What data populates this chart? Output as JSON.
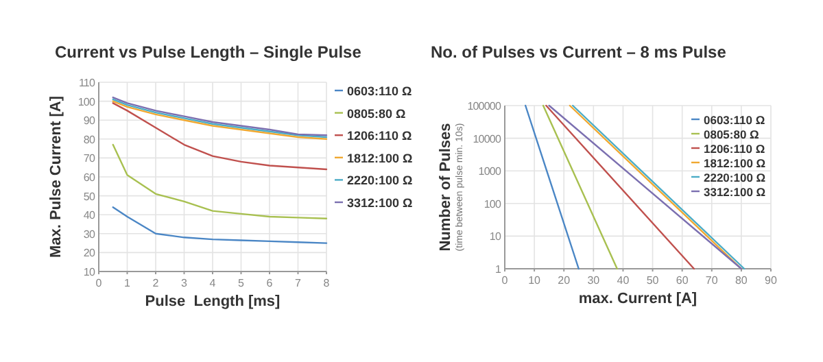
{
  "chart_data": [
    {
      "type": "line",
      "title": "Current vs Pulse Length – Single Pulse",
      "xlabel": "Pulse  Length [ms]",
      "ylabel": "Max. Pulse Current [A]",
      "x": [
        0.5,
        1,
        2,
        3,
        4,
        5,
        6,
        7,
        8
      ],
      "series": [
        {
          "name": "0603:110 Ω",
          "color": "#4a86c5",
          "values": [
            44,
            39,
            30,
            28,
            27,
            26.5,
            26,
            25.5,
            25
          ]
        },
        {
          "name": "0805:80 Ω",
          "color": "#a8c050",
          "values": [
            77,
            61,
            51,
            47,
            42,
            40.5,
            39,
            38.5,
            38
          ]
        },
        {
          "name": "1206:110 Ω",
          "color": "#c0504d",
          "values": [
            99,
            95,
            86,
            77,
            71,
            68,
            66,
            65,
            64
          ]
        },
        {
          "name": "1812:100 Ω",
          "color": "#f0a830",
          "values": [
            100,
            97,
            93,
            90,
            87,
            85,
            83,
            81,
            80
          ]
        },
        {
          "name": "2220:100 Ω",
          "color": "#4bacc6",
          "values": [
            101,
            98,
            94,
            91,
            88,
            86,
            84,
            82,
            81
          ]
        },
        {
          "name": "3312:100 Ω",
          "color": "#7b6fb0",
          "values": [
            102,
            99,
            95,
            92,
            89,
            87,
            85,
            82.5,
            82
          ]
        }
      ],
      "xlim": [
        0,
        8
      ],
      "xticks": [
        0,
        1,
        2,
        3,
        4,
        5,
        6,
        7,
        8
      ],
      "ylim": [
        10,
        110
      ],
      "yticks": [
        10,
        20,
        30,
        40,
        50,
        60,
        70,
        80,
        90,
        100,
        110
      ],
      "grid": true,
      "legend": "right"
    },
    {
      "type": "line",
      "title": "No. of Pulses vs Current – 8 ms Pulse",
      "xlabel": "max. Current [A]",
      "ylabel": "Number of Pulses\n(time between pulse min. 10s)",
      "series": [
        {
          "name": "0603:110 Ω",
          "color": "#4a86c5",
          "x": [
            7,
            25
          ],
          "values": [
            100000,
            1
          ]
        },
        {
          "name": "0805:80 Ω",
          "color": "#a8c050",
          "x": [
            13,
            38
          ],
          "values": [
            100000,
            1
          ]
        },
        {
          "name": "1206:110 Ω",
          "color": "#c0504d",
          "x": [
            14,
            64
          ],
          "values": [
            100000,
            1
          ]
        },
        {
          "name": "1812:100 Ω",
          "color": "#f0a830",
          "x": [
            22,
            80
          ],
          "values": [
            100000,
            1
          ]
        },
        {
          "name": "2220:100 Ω",
          "color": "#4bacc6",
          "x": [
            23,
            81
          ],
          "values": [
            100000,
            1
          ]
        },
        {
          "name": "3312:100 Ω",
          "color": "#7b6fb0",
          "x": [
            15,
            80
          ],
          "values": [
            100000,
            1
          ]
        }
      ],
      "xlim": [
        0,
        90
      ],
      "xticks": [
        0,
        10,
        20,
        30,
        40,
        50,
        60,
        70,
        80,
        90
      ],
      "ylim": [
        1,
        100000
      ],
      "yticks": [
        1,
        10,
        100,
        1000,
        10000,
        100000
      ],
      "log": true,
      "grid": true,
      "legend": "top right"
    }
  ]
}
